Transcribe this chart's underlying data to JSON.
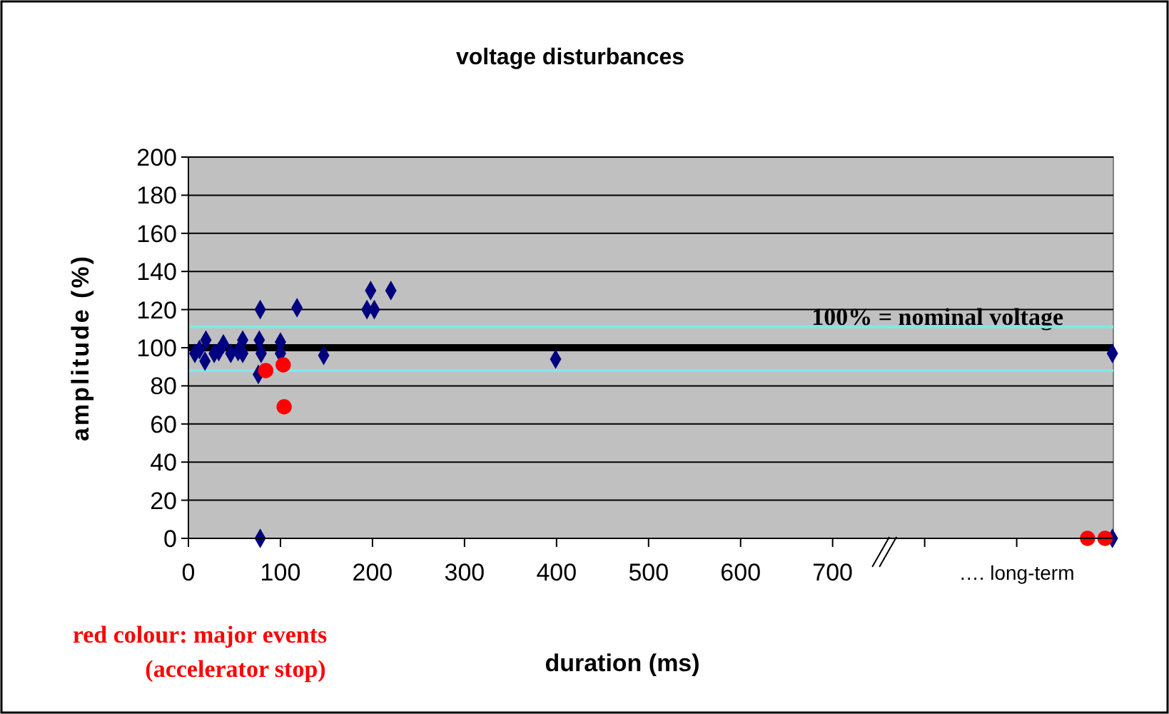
{
  "chart_data": {
    "type": "scatter",
    "title": "voltage disturbances",
    "xlabel": "duration (ms)",
    "ylabel": "amplitude (%)",
    "xlim": [
      0,
      1005
    ],
    "xticks": [
      0,
      100,
      200,
      300,
      400,
      500,
      600,
      700,
      {
        "value": 800,
        "label": null
      },
      {
        "value": 900,
        "label": "…. long-term"
      }
    ],
    "ylim": [
      0,
      200
    ],
    "yticks": [
      0,
      20,
      40,
      60,
      80,
      100,
      120,
      140,
      160,
      180,
      200
    ],
    "grid": "y",
    "series": [
      {
        "color": "#000080",
        "marker": "diamond",
        "x": [
          78,
          118,
          198,
          220,
          194,
          202,
          147,
          399,
          78,
          7,
          18,
          19,
          28,
          38,
          46,
          59,
          59,
          77,
          79,
          100,
          100,
          76,
          12,
          33,
          54,
          1004,
          1004
        ],
        "values": [
          120,
          121,
          130,
          130,
          120,
          120,
          96,
          94,
          0,
          97,
          93,
          104,
          97,
          102,
          97,
          104,
          97,
          104,
          97,
          103,
          97,
          86,
          99,
          98,
          98,
          97,
          0
        ]
      },
      {
        "color": "#ff0000",
        "marker": "circle",
        "x": [
          84,
          103,
          104,
          977,
          996
        ],
        "values": [
          88,
          91,
          69,
          0,
          0
        ]
      }
    ],
    "ref_lines": [
      {
        "axis": "y",
        "value": 100,
        "label": "100% = nominal voltage",
        "color": "#000000"
      },
      {
        "axis": "y",
        "value": 111,
        "label": null,
        "color": "#80e8e8"
      },
      {
        "axis": "y",
        "value": 88,
        "label": null,
        "color": "#80e8e8"
      }
    ],
    "annotations": [
      "red colour: major events\n(accelerator stop)"
    ]
  }
}
